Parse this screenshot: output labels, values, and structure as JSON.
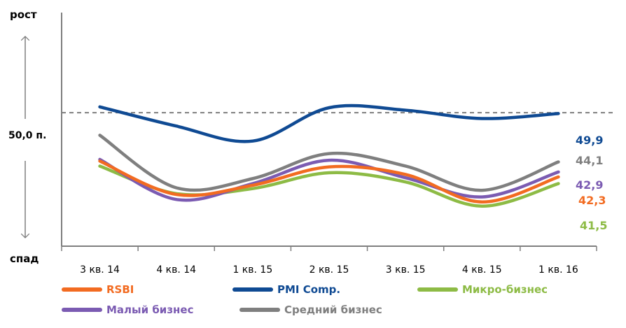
{
  "chart_data": {
    "type": "line",
    "categories": [
      "3 кв. 14",
      "4 кв. 14",
      "1 кв. 15",
      "2 кв. 15",
      "3 кв. 15",
      "4 кв. 15",
      "1 кв. 16"
    ],
    "series": [
      {
        "name": "RSBI",
        "color": "#f26b21",
        "values": [
          44.2,
          40.2,
          41.3,
          43.5,
          42.6,
          39.3,
          42.3
        ]
      },
      {
        "name": "PMI Comp.",
        "color": "#0f4a93",
        "values": [
          50.7,
          48.4,
          46.6,
          50.6,
          50.3,
          49.3,
          49.9
        ]
      },
      {
        "name": "Микро-бизнес",
        "color": "#8dbb45",
        "values": [
          43.6,
          40.3,
          40.9,
          42.8,
          41.7,
          38.8,
          41.5
        ]
      },
      {
        "name": "Малый бизнес",
        "color": "#7b5bb2",
        "values": [
          44.4,
          39.6,
          41.5,
          44.3,
          42.2,
          39.9,
          42.9
        ]
      },
      {
        "name": "Средний бизнес",
        "color": "#7f7f7f",
        "values": [
          47.3,
          41.0,
          42.1,
          45.1,
          43.6,
          40.7,
          44.1
        ]
      }
    ],
    "end_labels": [
      {
        "text": "49,9",
        "color": "#0f4a93"
      },
      {
        "text": "44,1",
        "color": "#7f7f7f"
      },
      {
        "text": "42,9",
        "color": "#7b5bb2"
      },
      {
        "text": "42,3",
        "color": "#f26b21"
      },
      {
        "text": "41,5",
        "color": "#8dbb45"
      }
    ],
    "reference_line": {
      "value": 50.0,
      "label": "50,0 п."
    },
    "y_top_label": "рост",
    "y_bottom_label": "спад",
    "ylim": [
      34,
      62
    ],
    "legend_position": "bottom",
    "grid": false
  }
}
